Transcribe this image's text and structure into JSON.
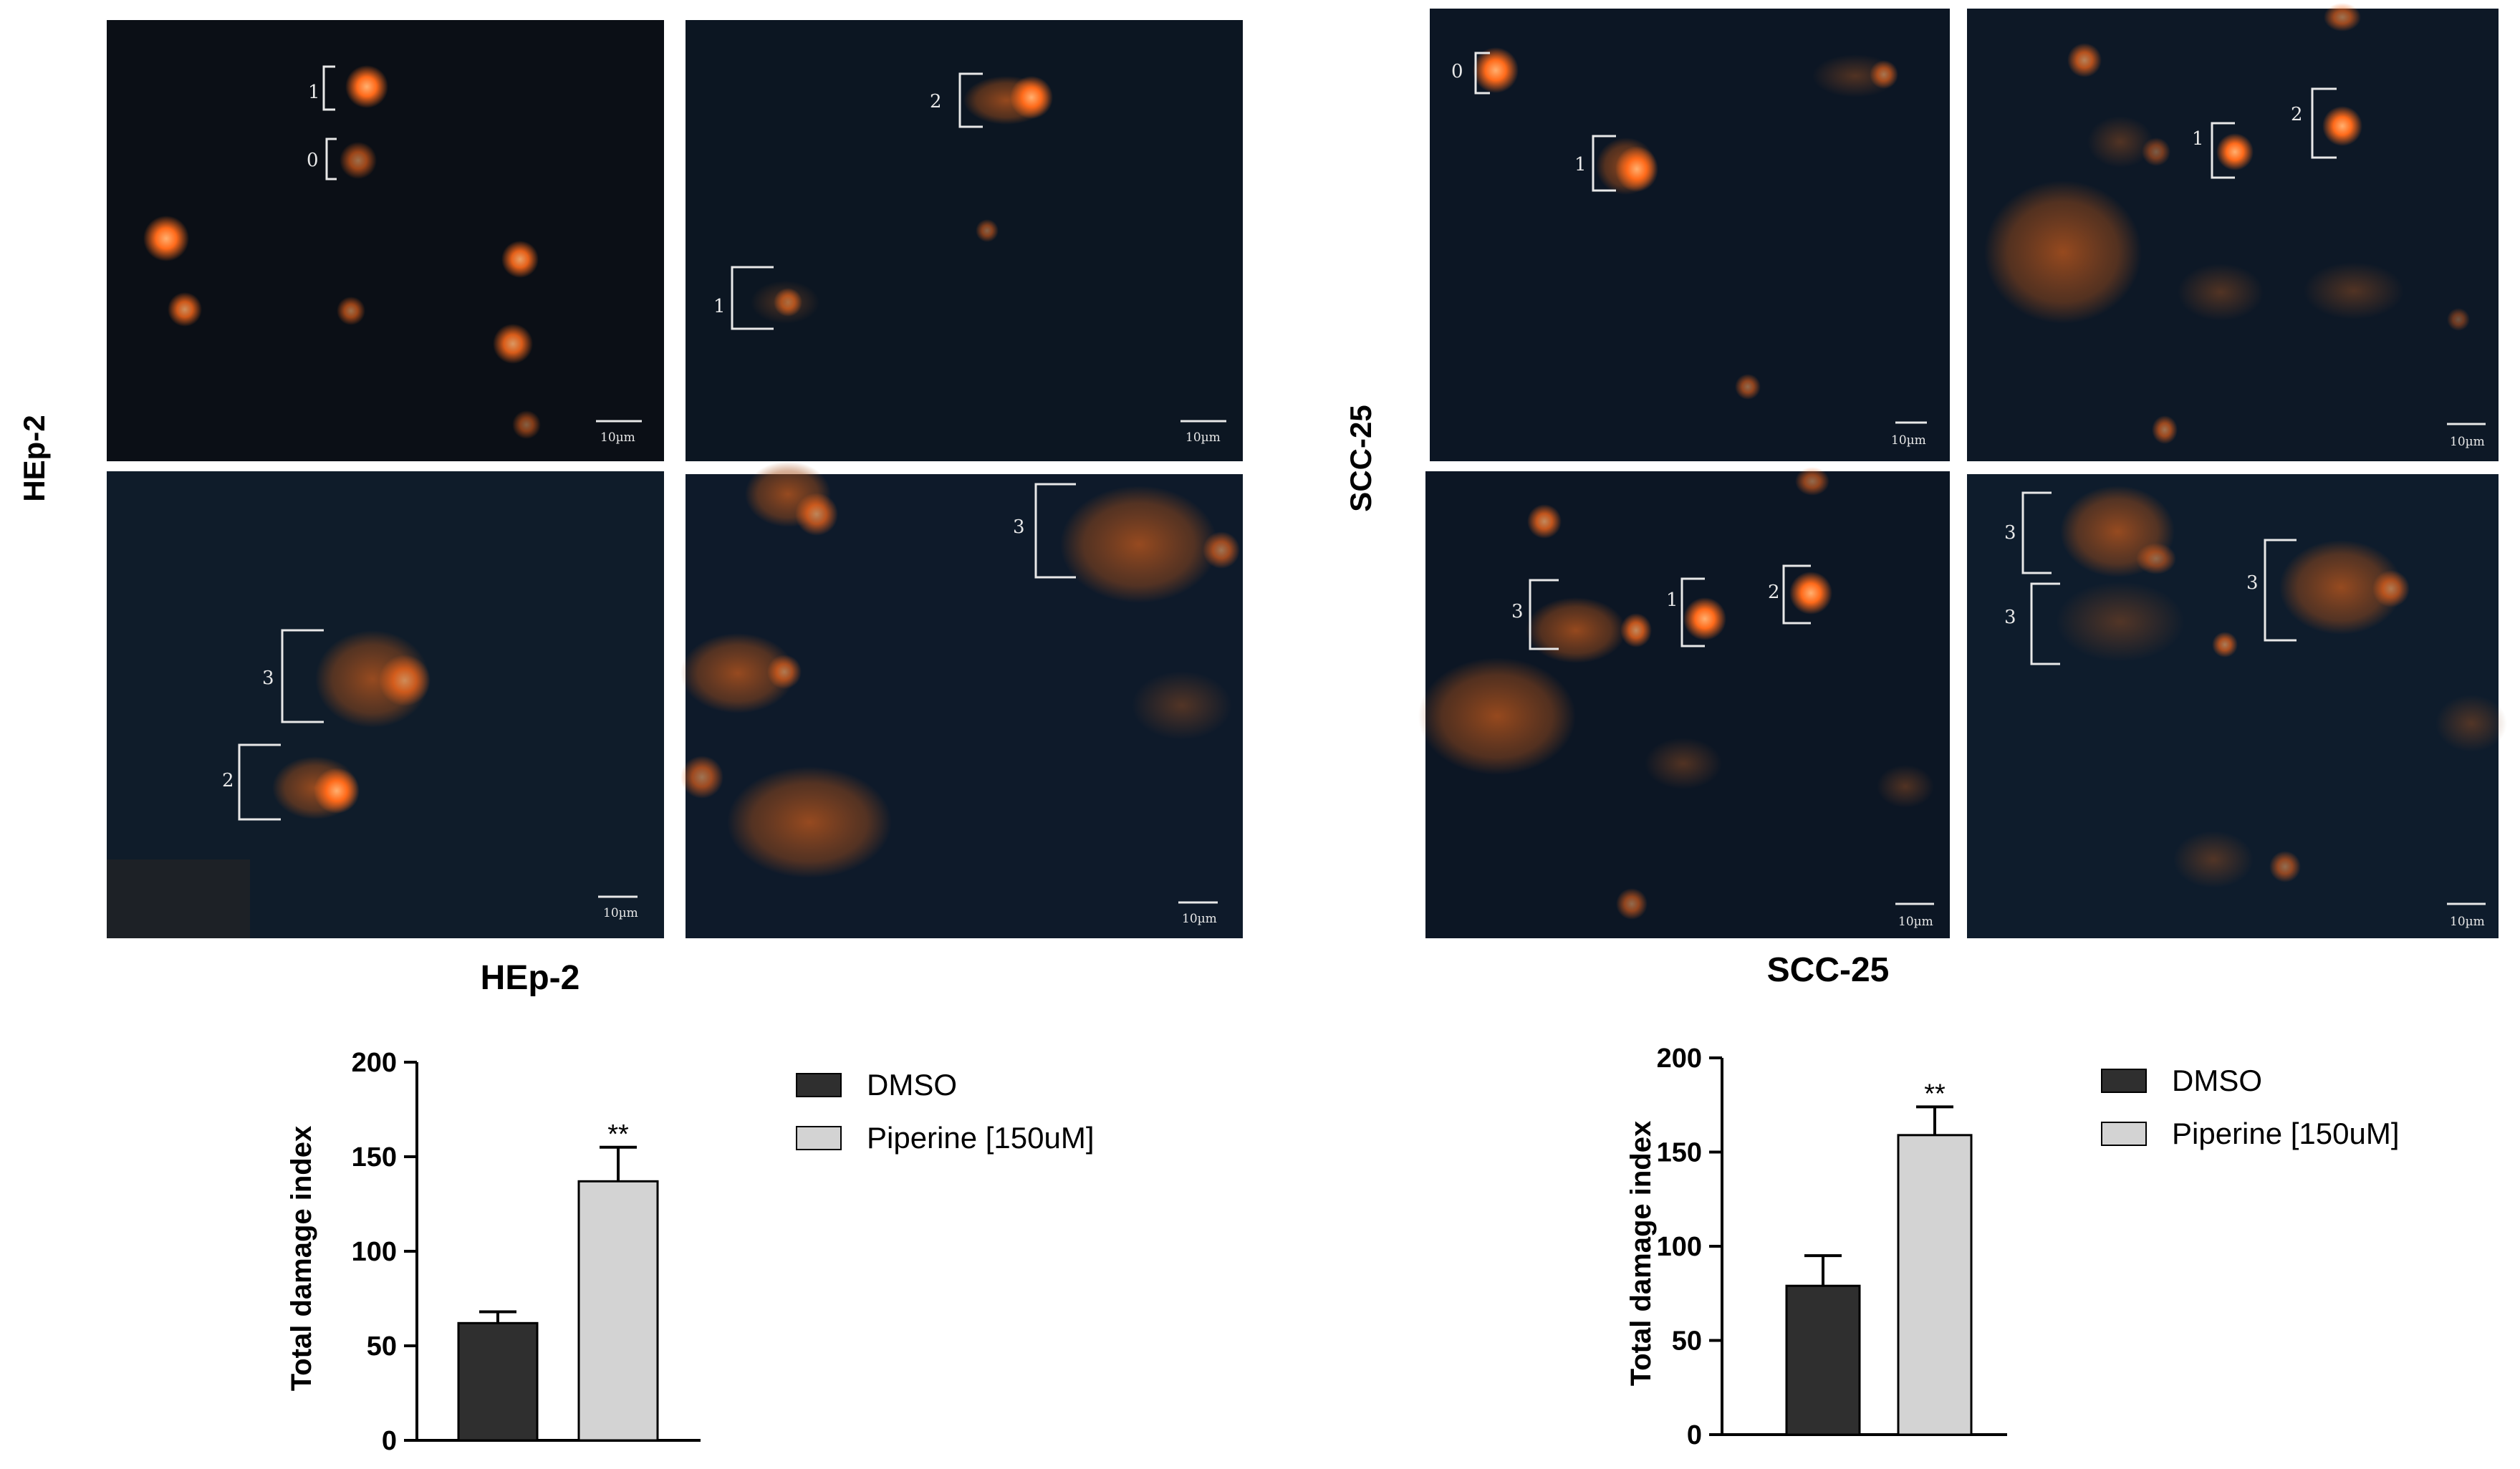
{
  "figure": {
    "left_panel": {
      "row_label": "HEp-2",
      "caption": "HEp-2",
      "micrographs": [
        {
          "scale_bar": "10µm",
          "comet_scores": [
            "1",
            "0"
          ]
        },
        {
          "scale_bar": "10µm",
          "comet_scores": [
            "2",
            "1"
          ]
        },
        {
          "scale_bar": "10µm",
          "comet_scores": [
            "3",
            "2"
          ]
        },
        {
          "scale_bar": "10µm",
          "comet_scores": [
            "3"
          ]
        }
      ]
    },
    "right_panel": {
      "row_label": "SCC-25",
      "caption": "SCC-25",
      "micrographs": [
        {
          "scale_bar": "10µm",
          "comet_scores": [
            "0",
            "1"
          ]
        },
        {
          "scale_bar": "10µm",
          "comet_scores": [
            "1",
            "2"
          ]
        },
        {
          "scale_bar": "10µm",
          "comet_scores": [
            "3",
            "1",
            "2"
          ]
        },
        {
          "scale_bar": "10µm",
          "comet_scores": [
            "3",
            "3",
            "3"
          ]
        }
      ]
    }
  },
  "colors": {
    "micrograph_bg": "#0d1520",
    "nucleus": "#ff6a1a",
    "comet_tail": "#b8541c",
    "dmso_bar": "#2f2f2f",
    "piperine_bar": "#d3d3d3"
  },
  "chart_data": [
    {
      "type": "bar",
      "categories": [
        "DMSO",
        "Piperine [150uM]"
      ],
      "values": [
        62,
        137
      ],
      "errors": [
        6,
        18
      ],
      "annotations": [
        "",
        "**"
      ],
      "ylabel": "Total damage index",
      "ylim": [
        0,
        200
      ],
      "yticks": [
        "0",
        "50",
        "100",
        "150",
        "200"
      ],
      "legend": [
        "DMSO",
        "Piperine [150uM]"
      ],
      "legend_position": "right"
    },
    {
      "type": "bar",
      "categories": [
        "DMSO",
        "Piperine [150uM]"
      ],
      "values": [
        79,
        159
      ],
      "errors": [
        16,
        15
      ],
      "annotations": [
        "",
        "**"
      ],
      "ylabel": "Total damage index",
      "ylim": [
        0,
        200
      ],
      "yticks": [
        "0",
        "50",
        "100",
        "150",
        "200"
      ],
      "legend": [
        "DMSO",
        "Piperine [150uM]"
      ],
      "legend_position": "right"
    }
  ]
}
